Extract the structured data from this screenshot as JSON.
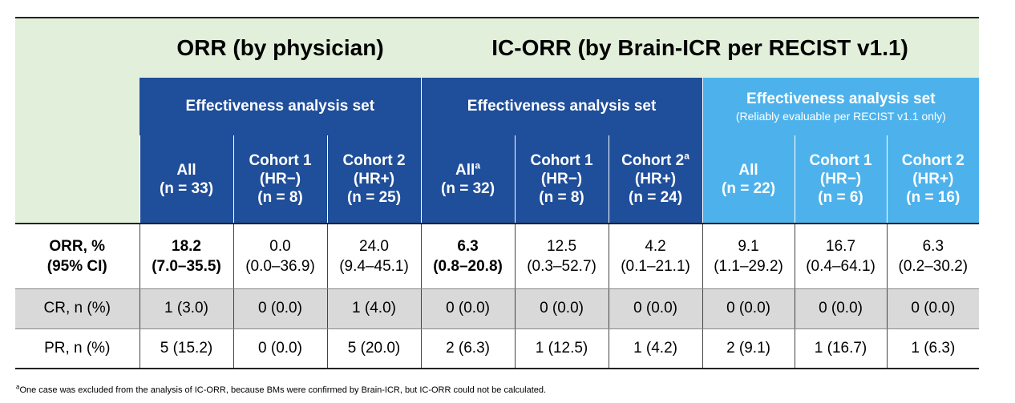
{
  "headers": {
    "orr_group": "ORR (by physician)",
    "icorr_group": "IC-ORR (by Brain-ICR per RECIST v1.1)",
    "eas_1": "Effectiveness analysis set",
    "eas_2": "Effectiveness analysis set",
    "eas_3_title": "Effectiveness analysis set",
    "eas_3_sub": "(Reliably evaluable per RECIST v1.1 only)",
    "columns": [
      {
        "l1": "All",
        "sup": "",
        "l2": "",
        "l3": "(n = 33)"
      },
      {
        "l1": "Cohort 1",
        "sup": "",
        "l2": "(HR−)",
        "l3": "(n = 8)"
      },
      {
        "l1": "Cohort 2",
        "sup": "",
        "l2": "(HR+)",
        "l3": "(n = 25)"
      },
      {
        "l1": "All",
        "sup": "a",
        "l2": "",
        "l3": "(n = 32)"
      },
      {
        "l1": "Cohort 1",
        "sup": "",
        "l2": "(HR−)",
        "l3": "(n = 8)"
      },
      {
        "l1": "Cohort 2",
        "sup": "a",
        "l2": "(HR+)",
        "l3": "(n = 24)"
      },
      {
        "l1": "All",
        "sup": "",
        "l2": "",
        "l3": "(n = 22)"
      },
      {
        "l1": "Cohort 1",
        "sup": "",
        "l2": "(HR−)",
        "l3": "(n = 6)"
      },
      {
        "l1": "Cohort 2",
        "sup": "",
        "l2": "(HR+)",
        "l3": "(n = 16)"
      }
    ]
  },
  "rows": {
    "orr": {
      "label1": "ORR, %",
      "label2": "(95% CI)",
      "cells": [
        {
          "v": "18.2",
          "ci": "(7.0–35.5)"
        },
        {
          "v": "0.0",
          "ci": "(0.0–36.9)"
        },
        {
          "v": "24.0",
          "ci": "(9.4–45.1)"
        },
        {
          "v": "6.3",
          "ci": "(0.8–20.8)"
        },
        {
          "v": "12.5",
          "ci": "(0.3–52.7)"
        },
        {
          "v": "4.2",
          "ci": "(0.1–21.1)"
        },
        {
          "v": "9.1",
          "ci": "(1.1–29.2)"
        },
        {
          "v": "16.7",
          "ci": "(0.4–64.1)"
        },
        {
          "v": "6.3",
          "ci": "(0.2–30.2)"
        }
      ]
    },
    "cr": {
      "label": "CR, n (%)",
      "cells": [
        "1 (3.0)",
        "0 (0.0)",
        "1 (4.0)",
        "0 (0.0)",
        "0 (0.0)",
        "0 (0.0)",
        "0 (0.0)",
        "0 (0.0)",
        "0 (0.0)"
      ]
    },
    "pr": {
      "label": "PR, n (%)",
      "cells": [
        "5 (15.2)",
        "0 (0.0)",
        "5 (20.0)",
        "2 (6.3)",
        "1 (12.5)",
        "1 (4.2)",
        "2 (9.1)",
        "1 (16.7)",
        "1 (6.3)"
      ]
    }
  },
  "footnote": {
    "marker": "a",
    "text": "One case was excluded from the analysis of IC-ORR, because BMs were confirmed by Brain-ICR, but IC-ORR could not be calculated."
  }
}
